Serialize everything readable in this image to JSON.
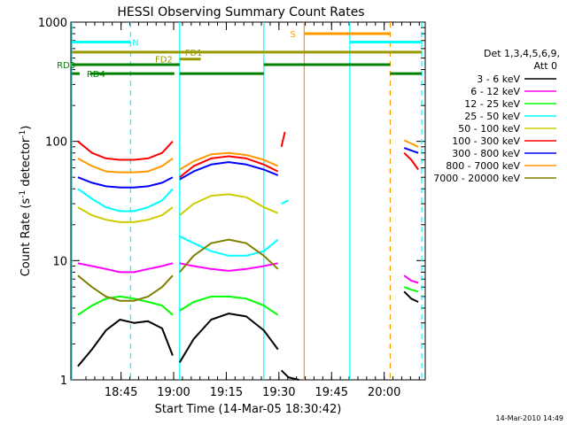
{
  "chart_data": {
    "type": "line",
    "title": "HESSI Observing Summary Count Rates",
    "xlabel": "Start Time (14-Mar-05 18:30:42)",
    "ylabel_main": "Count Rate (s",
    "ylabel_sup1": "-1",
    "ylabel_mid": " detector",
    "ylabel_sup2": "-1",
    "ylabel_end": ")",
    "x_unit": "minutes after 18:30:42",
    "xlim": [
      0,
      101
    ],
    "ylim": [
      1,
      1000
    ],
    "yscale": "log",
    "grid": false,
    "legend_placement": "right",
    "x_ticks": [
      {
        "label": "18:45",
        "value": 14.3
      },
      {
        "label": "19:00",
        "value": 29.3
      },
      {
        "label": "19:15",
        "value": 44.3
      },
      {
        "label": "19:30",
        "value": 59.3
      },
      {
        "label": "19:45",
        "value": 74.3
      },
      {
        "label": "20:00",
        "value": 89.3
      }
    ],
    "y_ticks": [
      {
        "label": "1",
        "value": 1
      },
      {
        "label": "10",
        "value": 10
      },
      {
        "label": "100",
        "value": 100
      },
      {
        "label": "1000",
        "value": 1000
      }
    ],
    "legend_header_1": "Det 1,3,4,5,6,9,",
    "legend_header_2": "Att 0",
    "timestamp": "14-Mar-2010 14:49",
    "series": [
      {
        "name": "3 - 6 keV",
        "color": "#000000",
        "segments": [
          {
            "x": [
              2,
              6,
              10,
              14,
              18,
              22,
              26,
              29
            ],
            "y": [
              1.3,
              1.8,
              2.6,
              3.2,
              3.0,
              3.1,
              2.7,
              1.6
            ]
          },
          {
            "x": [
              31,
              35,
              40,
              45,
              50,
              55,
              59
            ],
            "y": [
              1.4,
              2.2,
              3.2,
              3.6,
              3.4,
              2.6,
              1.8
            ]
          },
          {
            "x": [
              60,
              62,
              65
            ],
            "y": [
              1.2,
              1.05,
              1.0
            ]
          },
          {
            "x": [
              95,
              97,
              99
            ],
            "y": [
              5.5,
              4.8,
              4.5
            ]
          }
        ]
      },
      {
        "name": "6 - 12 keV",
        "color": "#ff00ff",
        "segments": [
          {
            "x": [
              2,
              6,
              10,
              14,
              18,
              22,
              26,
              29
            ],
            "y": [
              9.5,
              9.0,
              8.5,
              8.0,
              8.0,
              8.5,
              9.0,
              9.5
            ]
          },
          {
            "x": [
              31,
              35,
              40,
              45,
              50,
              55,
              59
            ],
            "y": [
              9.5,
              9.0,
              8.5,
              8.2,
              8.5,
              9.0,
              9.5
            ]
          },
          {
            "x": [
              95,
              97,
              99
            ],
            "y": [
              7.5,
              6.8,
              6.5
            ]
          }
        ]
      },
      {
        "name": "12 - 25 keV",
        "color": "#00ff00",
        "segments": [
          {
            "x": [
              2,
              6,
              10,
              14,
              18,
              22,
              26,
              29
            ],
            "y": [
              3.5,
              4.2,
              4.8,
              5.0,
              4.8,
              4.5,
              4.2,
              3.5
            ]
          },
          {
            "x": [
              31,
              35,
              40,
              45,
              50,
              55,
              59
            ],
            "y": [
              3.8,
              4.5,
              5.0,
              5.0,
              4.8,
              4.2,
              3.5
            ]
          },
          {
            "x": [
              95,
              97,
              99
            ],
            "y": [
              6.0,
              5.7,
              5.5
            ]
          }
        ]
      },
      {
        "name": "25 - 50 keV",
        "color": "#00ffff",
        "segments": [
          {
            "x": [
              2,
              6,
              10,
              14,
              18,
              22,
              26,
              29
            ],
            "y": [
              40,
              33,
              28,
              26,
              26,
              28,
              32,
              40
            ]
          },
          {
            "x": [
              31,
              35,
              40,
              45,
              50,
              55,
              59
            ],
            "y": [
              16,
              14,
              12,
              11,
              11,
              12,
              15
            ]
          },
          {
            "x": [
              60,
              62
            ],
            "y": [
              30,
              32
            ]
          }
        ]
      },
      {
        "name": "50 - 100 keV",
        "color": "#cccc00",
        "segments": [
          {
            "x": [
              2,
              6,
              10,
              14,
              18,
              22,
              26,
              29
            ],
            "y": [
              28,
              24,
              22,
              21,
              21,
              22,
              24,
              28
            ]
          },
          {
            "x": [
              31,
              35,
              40,
              45,
              50,
              55,
              59
            ],
            "y": [
              24,
              30,
              35,
              36,
              34,
              28,
              25
            ]
          }
        ]
      },
      {
        "name": "100 - 300 keV",
        "color": "#ff0000",
        "segments": [
          {
            "x": [
              2,
              6,
              10,
              14,
              18,
              22,
              26,
              29
            ],
            "y": [
              100,
              80,
              72,
              70,
              70,
              72,
              80,
              100
            ]
          },
          {
            "x": [
              31,
              35,
              40,
              45,
              50,
              55,
              59
            ],
            "y": [
              50,
              62,
              72,
              75,
              72,
              64,
              56
            ]
          },
          {
            "x": [
              60,
              61
            ],
            "y": [
              90,
              120
            ]
          },
          {
            "x": [
              95,
              97,
              99
            ],
            "y": [
              80,
              70,
              58
            ]
          }
        ]
      },
      {
        "name": "300 - 800 keV",
        "color": "#0000ff",
        "segments": [
          {
            "x": [
              2,
              6,
              10,
              14,
              18,
              22,
              26,
              29
            ],
            "y": [
              50,
              45,
              42,
              41,
              41,
              42,
              45,
              50
            ]
          },
          {
            "x": [
              31,
              35,
              40,
              45,
              50,
              55,
              59
            ],
            "y": [
              48,
              56,
              64,
              67,
              64,
              58,
              52
            ]
          },
          {
            "x": [
              95,
              97,
              99
            ],
            "y": [
              88,
              84,
              80
            ]
          }
        ]
      },
      {
        "name": "800 - 7000 keV",
        "color": "#ff9900",
        "segments": [
          {
            "x": [
              2,
              6,
              10,
              14,
              18,
              22,
              26,
              29
            ],
            "y": [
              72,
              62,
              56,
              55,
              55,
              56,
              62,
              72
            ]
          },
          {
            "x": [
              31,
              35,
              40,
              45,
              50,
              55,
              59
            ],
            "y": [
              58,
              68,
              78,
              80,
              77,
              70,
              62
            ]
          },
          {
            "x": [
              95,
              97,
              99
            ],
            "y": [
              102,
              96,
              90
            ]
          }
        ]
      },
      {
        "name": "7000 - 20000 keV",
        "color": "#808000",
        "segments": [
          {
            "x": [
              2,
              6,
              10,
              14,
              18,
              22,
              26,
              29
            ],
            "y": [
              7.5,
              6.0,
              5.0,
              4.6,
              4.6,
              5.0,
              6.0,
              7.5
            ]
          },
          {
            "x": [
              31,
              35,
              40,
              45,
              50,
              55,
              59
            ],
            "y": [
              8.0,
              11,
              14,
              15,
              14,
              11,
              8.5
            ]
          }
        ]
      }
    ],
    "vlines": [
      {
        "x": 0.3,
        "color": "#00ffff",
        "dash": "none"
      },
      {
        "x": 17,
        "color": "#00ffff",
        "dash": "dashed"
      },
      {
        "x": 31,
        "color": "#00ffff",
        "dash": "none"
      },
      {
        "x": 55,
        "color": "#00ffff",
        "dash": "none"
      },
      {
        "x": 66.5,
        "color": "#ff9900",
        "dash": "none"
      },
      {
        "x": 79.5,
        "color": "#00ffff",
        "dash": "none"
      },
      {
        "x": 91,
        "color": "#ff9900",
        "dash": "dashed"
      },
      {
        "x": 100,
        "color": "#00ffff",
        "dash": "dashed"
      }
    ],
    "flag_bars": [
      {
        "label": "N",
        "color": "#00ffff",
        "y": 680,
        "x0": 0.3,
        "x1": 17,
        "label_x": 17.5
      },
      {
        "label": "N",
        "color": "#00ffff",
        "y": 680,
        "x0": 79.5,
        "x1": 100,
        "label_x": null
      },
      {
        "label": "S",
        "color": "#ff9900",
        "y": 800,
        "x0": 66.5,
        "x1": 91,
        "label_x": 62.5
      },
      {
        "label": "FD1",
        "color": "#999900",
        "y": 560,
        "x0": 0.3,
        "x1": 100,
        "label_x": 32.5
      },
      {
        "label": "FD2",
        "color": "#999900",
        "y": 490,
        "x0": 31,
        "x1": 37,
        "label_x": 24
      },
      {
        "label": "RD0",
        "color": "#008000",
        "y": 440,
        "x0": 0.3,
        "x1": 31,
        "label_x": -4
      },
      {
        "label": "RD0",
        "color": "#008000",
        "y": 440,
        "x0": 55,
        "x1": 91,
        "label_x": null
      },
      {
        "label": "RD4",
        "color": "#008000",
        "y": 370,
        "x0": 0.3,
        "x1": 2.5,
        "label_x": 4.5
      },
      {
        "label": "RD4",
        "color": "#008000",
        "y": 370,
        "x0": 5.5,
        "x1": 29.5,
        "label_x": null
      },
      {
        "label": "RD4",
        "color": "#008000",
        "y": 370,
        "x0": 31,
        "x1": 55,
        "label_x": null
      },
      {
        "label": "RD4",
        "color": "#008000",
        "y": 370,
        "x0": 91,
        "x1": 100,
        "label_x": null
      }
    ]
  }
}
